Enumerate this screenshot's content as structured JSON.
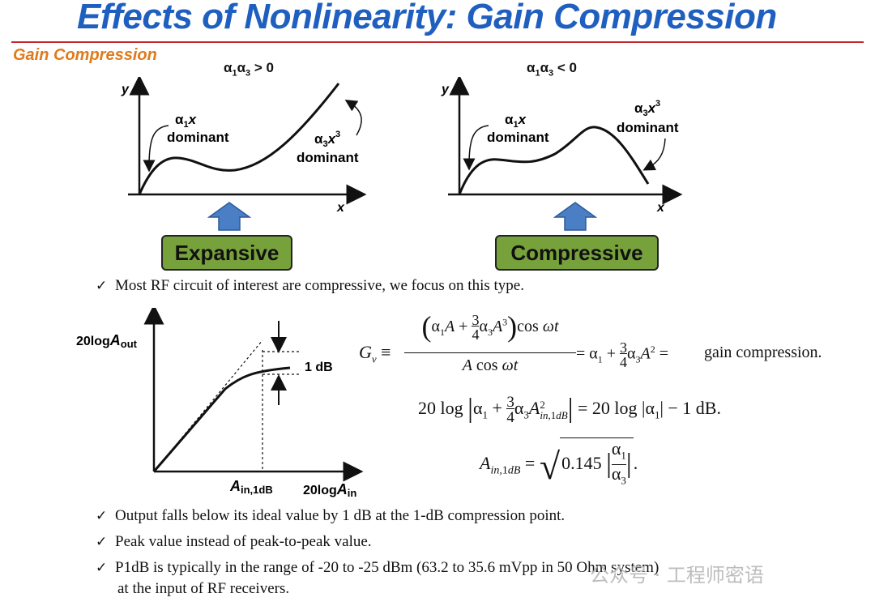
{
  "title": "Effects of Nonlinearity: Gain Compression",
  "subtitle": "Gain Compression",
  "plots": {
    "expansive": {
      "condition": "α1α3 > 0",
      "y_label": "y",
      "x_label": "x",
      "linear_term_label": "α1x",
      "linear_dominant": "dominant",
      "cubic_term_label": "α3x3",
      "cubic_dominant": "dominant",
      "box_label": "Expansive"
    },
    "compressive": {
      "condition": "α1α3 < 0",
      "y_label": "y",
      "x_label": "x",
      "linear_term_label": "α1x",
      "linear_dominant": "dominant",
      "cubic_term_label": "α3x3",
      "cubic_dominant": "dominant",
      "box_label": "Compressive"
    }
  },
  "bullets": {
    "b1": "Most RF circuit of interest are compressive, we focus on this type.",
    "b2": "Output falls below its ideal value by 1 dB at the 1-dB compression point.",
    "b3": "Peak value instead of peak-to-peak value.",
    "b4_line1": "P1dB is typically in the range of -20 to -25 dBm (63.2 to 35.6 mVpp in 50 Ohm system)",
    "b4_line2": "at the input of RF receivers."
  },
  "compression_plot": {
    "y_label": "20logAout",
    "x_label": "20logAin",
    "point_label": "Ain,1dB",
    "delta_label": "1 dB"
  },
  "equations": {
    "eq1_lhs": "Gv ≡",
    "eq1_num": "(α1A + 3/4 α3A3) cos ωt",
    "eq1_den": "A cos ωt",
    "eq1_rhs": "= α1 + 3/4 α3A2 =",
    "eq1_note": "gain compression.",
    "eq2": "20 log |α1 + 3/4 α3A²in,1dB| = 20 log |α1| − 1 dB.",
    "eq3": "Ain,1dB = √(0.145 |α1/α3|)."
  },
  "watermark": "公众号 · 工程师密语",
  "colors": {
    "title": "#1f5fbf",
    "subtitle": "#e07a1a",
    "rule": "#c0282d",
    "box": "#77a13b",
    "arrow": "#4a7fc6"
  }
}
